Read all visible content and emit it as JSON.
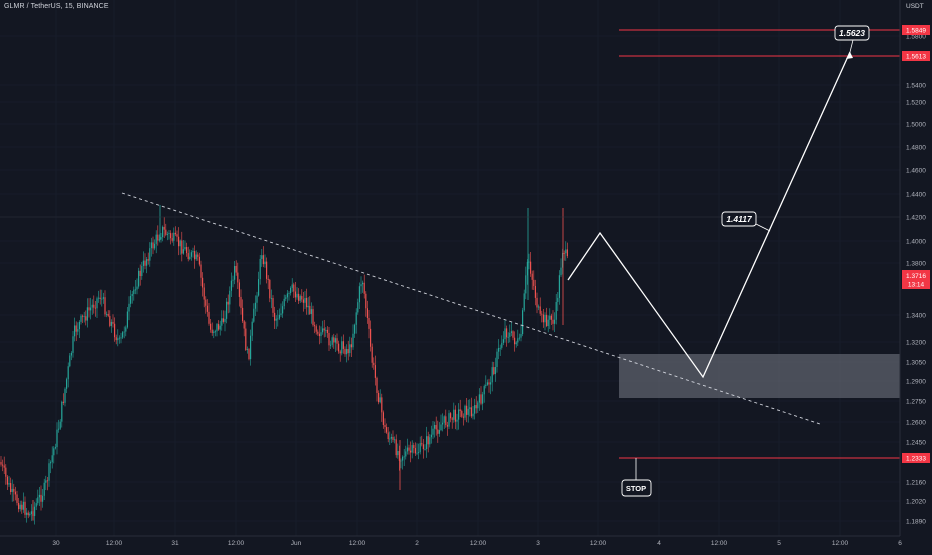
{
  "header": {
    "symbol_line": "GLMR / TetherUS, 15, BINANCE"
  },
  "axis": {
    "currency": "USDT",
    "price_labels": [
      "1.5800",
      "1.5400",
      "1.5200",
      "1.5000",
      "1.4800",
      "1.4600",
      "1.4400",
      "1.4200",
      "1.4000",
      "1.3800",
      "1.3400",
      "1.3200",
      "1.3050",
      "1.2900",
      "1.2750",
      "1.2600",
      "1.2450",
      "1.2160",
      "1.2020",
      "1.1890"
    ],
    "time_labels": [
      "30",
      "12:00",
      "31",
      "12:00",
      "Jun",
      "12:00",
      "2",
      "12:00",
      "3",
      "12:00",
      "4",
      "12:00",
      "5",
      "12:00",
      "6"
    ]
  },
  "badges": {
    "stop_level": "1.5849",
    "target_level": "1.5613",
    "last_price": "1.3716",
    "countdown": "13:14",
    "stop_price": "1.2333"
  },
  "annotations": {
    "target_label": "1.5623",
    "mid_label": "1.4117",
    "stop_label": "STOP"
  },
  "colors": {
    "background": "#131722",
    "up_candle": "#26a69a",
    "down_candle": "#ef5350",
    "level_line": "#f23645",
    "projection": "#ffffff",
    "zone": "#787b86"
  }
}
